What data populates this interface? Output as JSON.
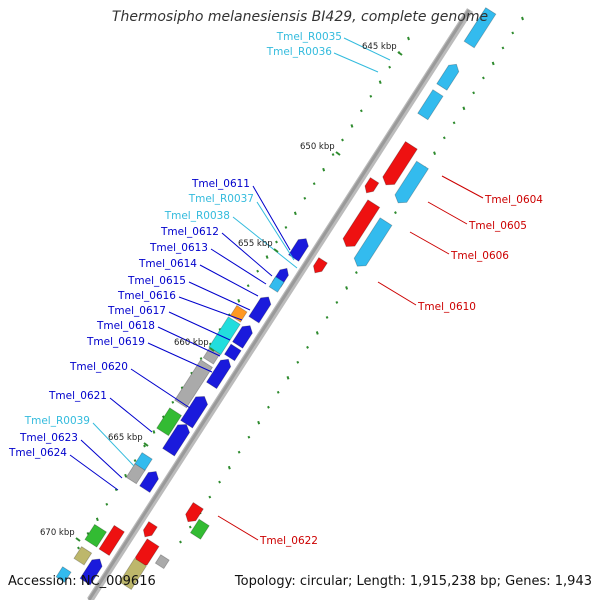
{
  "title": "Thermosipho melanesiensis BI429, complete genome",
  "accession": "Accession: NC_009616",
  "summary": "Topology: circular; Length: 1,915,238 bp; Genes: 1,943",
  "colors": {
    "backbone": "#9a9a9a",
    "gc_dots": "#2e8b2e",
    "label_red": "#cc0000",
    "label_blue": "#0000cc",
    "label_cyan": "#33bbdd",
    "gene_red": "#ee1111",
    "gene_blue": "#1a1adc",
    "gene_cyan": "#33bbee",
    "gene_green": "#33bb33",
    "gene_gray": "#aaaaaa",
    "gene_khaki": "#bdb76b",
    "gene_orange": "#ff9922",
    "gene_teal": "#22dddd"
  },
  "scale_labels": [
    "645 kbp",
    "650 kbp",
    "655 kbp",
    "660 kbp",
    "665 kbp",
    "670 kbp"
  ],
  "gene_labels": [
    {
      "text": "Tmel_R0035",
      "color": "cyan"
    },
    {
      "text": "Tmel_R0036",
      "color": "cyan"
    },
    {
      "text": "Tmel_0604",
      "color": "red"
    },
    {
      "text": "Tmel_0605",
      "color": "red"
    },
    {
      "text": "Tmel_0606",
      "color": "red"
    },
    {
      "text": "Tmel_0610",
      "color": "red"
    },
    {
      "text": "Tmel_0611",
      "color": "blue"
    },
    {
      "text": "Tmel_R0037",
      "color": "cyan"
    },
    {
      "text": "Tmel_R0038",
      "color": "cyan"
    },
    {
      "text": "Tmel_0612",
      "color": "blue"
    },
    {
      "text": "Tmel_0613",
      "color": "blue"
    },
    {
      "text": "Tmel_0614",
      "color": "blue"
    },
    {
      "text": "Tmel_0615",
      "color": "blue"
    },
    {
      "text": "Tmel_0616",
      "color": "blue"
    },
    {
      "text": "Tmel_0617",
      "color": "blue"
    },
    {
      "text": "Tmel_0618",
      "color": "blue"
    },
    {
      "text": "Tmel_0619",
      "color": "blue"
    },
    {
      "text": "Tmel_0620",
      "color": "blue"
    },
    {
      "text": "Tmel_0621",
      "color": "blue"
    },
    {
      "text": "Tmel_R0039",
      "color": "cyan"
    },
    {
      "text": "Tmel_0623",
      "color": "blue"
    },
    {
      "text": "Tmel_0624",
      "color": "blue"
    },
    {
      "text": "Tmel_0622",
      "color": "red"
    }
  ]
}
